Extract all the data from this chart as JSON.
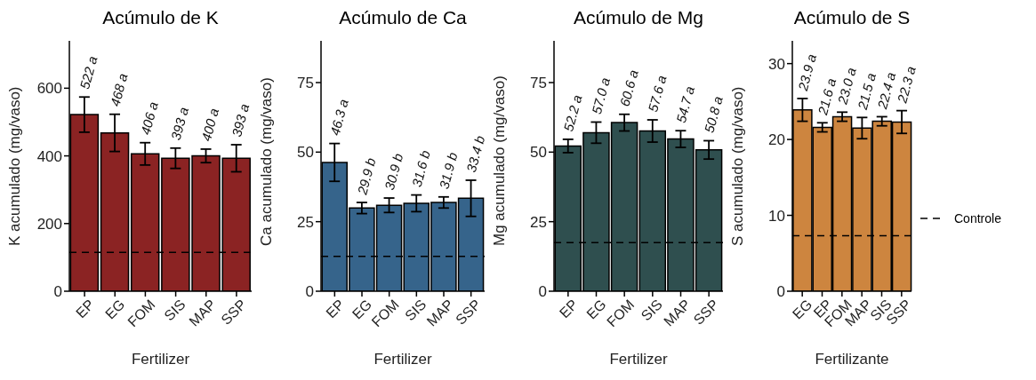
{
  "chart_data": [
    {
      "type": "bar",
      "title": "Acúmulo de K",
      "xlabel": "Fertilizer",
      "ylabel": "K acumulado (mg/vaso)",
      "categories": [
        "EP",
        "EG",
        "FOM",
        "SIS",
        "MAP",
        "SSP"
      ],
      "values": [
        522,
        468,
        406,
        393,
        400,
        393
      ],
      "errors": [
        52,
        55,
        33,
        30,
        20,
        40
      ],
      "value_labels": [
        "522 a",
        "468 a",
        "406 a",
        "393 a",
        "400 a",
        "393 a"
      ],
      "color": "#8b2323",
      "ylim": [
        0,
        740
      ],
      "yticks": [
        0,
        200,
        400,
        600
      ],
      "grid": false,
      "ref_lines": [
        {
          "axis": "y",
          "value": 115,
          "line_style": "dashed"
        }
      ]
    },
    {
      "type": "bar",
      "title": "Acúmulo de Ca",
      "xlabel": "Fertilizer",
      "ylabel": "Ca acumulado (mg/vaso)",
      "categories": [
        "EP",
        "EG",
        "FOM",
        "SIS",
        "MAP",
        "SSP"
      ],
      "values": [
        46.3,
        29.9,
        30.9,
        31.6,
        31.9,
        33.4
      ],
      "errors": [
        6.8,
        2,
        2.6,
        3,
        2,
        6.5
      ],
      "value_labels": [
        "46.3 a",
        "29.9 b",
        "30.9 b",
        "31.6 b",
        "31.9 b",
        "33.4 b"
      ],
      "color": "#36648b",
      "ylim": [
        0,
        90
      ],
      "yticks": [
        0,
        25,
        50,
        75
      ],
      "grid": false,
      "ref_lines": [
        {
          "axis": "y",
          "value": 12.5,
          "line_style": "dashed"
        }
      ]
    },
    {
      "type": "bar",
      "title": "Acúmulo de Mg",
      "xlabel": "Fertilizer",
      "ylabel": "Mg acumulado (mg/vaso)",
      "categories": [
        "EP",
        "EG",
        "FOM",
        "SIS",
        "MAP",
        "SSP"
      ],
      "values": [
        52.2,
        57.0,
        60.6,
        57.6,
        54.7,
        50.8
      ],
      "errors": [
        2.4,
        3.8,
        3,
        4,
        3,
        3.3
      ],
      "value_labels": [
        "52.2 a",
        "57.0 a",
        "60.6 a",
        "57.6 a",
        "54.7 a",
        "50.8 a"
      ],
      "color": "#2f4f4f",
      "ylim": [
        0,
        90
      ],
      "yticks": [
        0,
        25,
        50,
        75
      ],
      "grid": false,
      "ref_lines": [
        {
          "axis": "y",
          "value": 17.5,
          "line_style": "dashed"
        }
      ]
    },
    {
      "type": "bar",
      "title": "Acúmulo de S",
      "xlabel": "Fertilizante",
      "ylabel": "S acumulado (mg/vaso)",
      "categories": [
        "EG",
        "EP",
        "FOM",
        "MAP",
        "SIS",
        "SSP"
      ],
      "values": [
        23.9,
        21.6,
        23.0,
        21.5,
        22.4,
        22.3
      ],
      "errors": [
        1.5,
        0.6,
        0.6,
        1.4,
        0.6,
        1.5
      ],
      "value_labels": [
        "23.9 a",
        "21.6 a",
        "23.0 a",
        "21.5 a",
        "22.4 a",
        "22.3 a"
      ],
      "color": "#cd853f",
      "ylim": [
        0,
        33
      ],
      "yticks": [
        0,
        10,
        20,
        30
      ],
      "grid": false,
      "legend": "right",
      "ref_lines": [
        {
          "axis": "y",
          "value": 7.3,
          "label": "Controle",
          "line_style": "dashed"
        }
      ]
    }
  ]
}
